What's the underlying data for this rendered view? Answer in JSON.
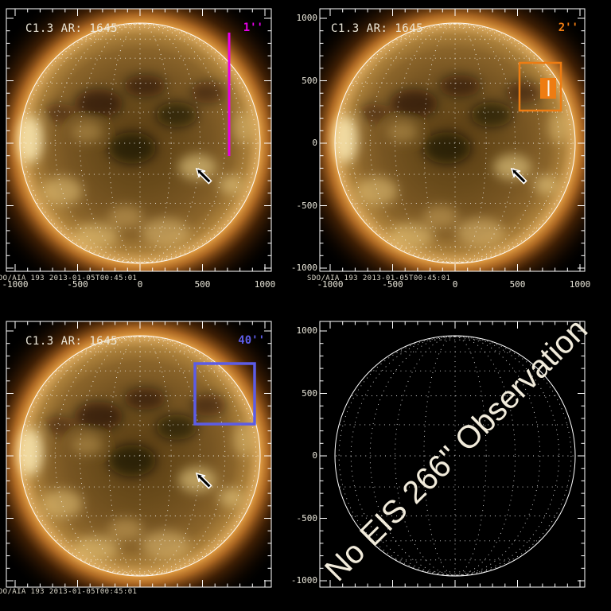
{
  "figure": {
    "timestamp": "SDO/AIA 193  2013-01-05T00:45:01"
  },
  "panels": {
    "top_left": {
      "title": "C1.3 AR: 1645",
      "fov_label": "1''",
      "fov_color": "#e800e8"
    },
    "top_right": {
      "title": "C1.3 AR: 1645",
      "fov_label": "2''",
      "fov_color": "#ee7c12"
    },
    "bottom_left": {
      "title": "C1.3 AR: 1645",
      "fov_label": "40''",
      "fov_color": "#5c5ce6"
    },
    "bottom_right": {
      "message": "No EIS 266'' Observation"
    }
  },
  "axes": {
    "x_ticks": [
      "-1000",
      "-500",
      "0",
      "500",
      "1000"
    ],
    "y_ticks": [
      "1000",
      "500",
      "0",
      "-500",
      "-1000"
    ],
    "units": "arcsec"
  },
  "colors": {
    "limb": "#ffffff",
    "slit_1arcsec": "#e800e8",
    "fov_2arcsec": "#ee7c12",
    "fov_40arcsec": "#5c5ce6",
    "arrow_fill": "#000000",
    "arrow_outline": "#ffffff"
  },
  "chart_data": {
    "type": "image-panels",
    "description": "Four-panel SDO/AIA 193 full-disk context images of AR 1645 (C1.3 flare) showing EIS slit/FOV options; dotted heliographic grid on disk, white limb circle, black arrow marking the flare site.",
    "image_label": "SDO/AIA 193  2013-01-05T00:45:01",
    "shared_axes": {
      "x_ticks": [
        -1000,
        -500,
        0,
        500,
        1000
      ],
      "y_ticks": [
        1000,
        500,
        0,
        -500,
        -1000
      ],
      "units": "arcsec",
      "x_range": [
        -1070,
        1070
      ],
      "y_range": [
        -1070,
        1070
      ],
      "grid": "dotted heliographic grid, 15 degree spacing"
    },
    "panels": [
      {
        "position": "top-left",
        "label": "C1.3 AR: 1645",
        "fov": "1''",
        "fov_color": "#e800e8",
        "fov_type": "slit-line",
        "slit_x_arcsec": 713,
        "slit_y_range_arcsec": [
          -100,
          885
        ],
        "arrow_tip_arcsec": [
          452,
          -197
        ]
      },
      {
        "position": "top-right",
        "label": "C1.3 AR: 1645",
        "fov": "2''",
        "fov_color": "#ee7c12",
        "fov_type": "rect-with-slit",
        "rect_x_arcsec": [
          516,
          847
        ],
        "rect_y_arcsec": [
          261,
          643
        ],
        "arrow_tip_arcsec": [
          452,
          -197
        ]
      },
      {
        "position": "bottom-left",
        "label": "C1.3 AR: 1645",
        "fov": "40''",
        "fov_color": "#5c5ce6",
        "fov_type": "rect",
        "rect_x_arcsec": [
          439,
          917
        ],
        "rect_y_arcsec": [
          255,
          739
        ],
        "arrow_tip_arcsec": [
          458,
          -140
        ]
      },
      {
        "position": "bottom-right",
        "label": "No EIS 266'' Observation",
        "fov": "266''",
        "fov_type": "none"
      }
    ]
  }
}
